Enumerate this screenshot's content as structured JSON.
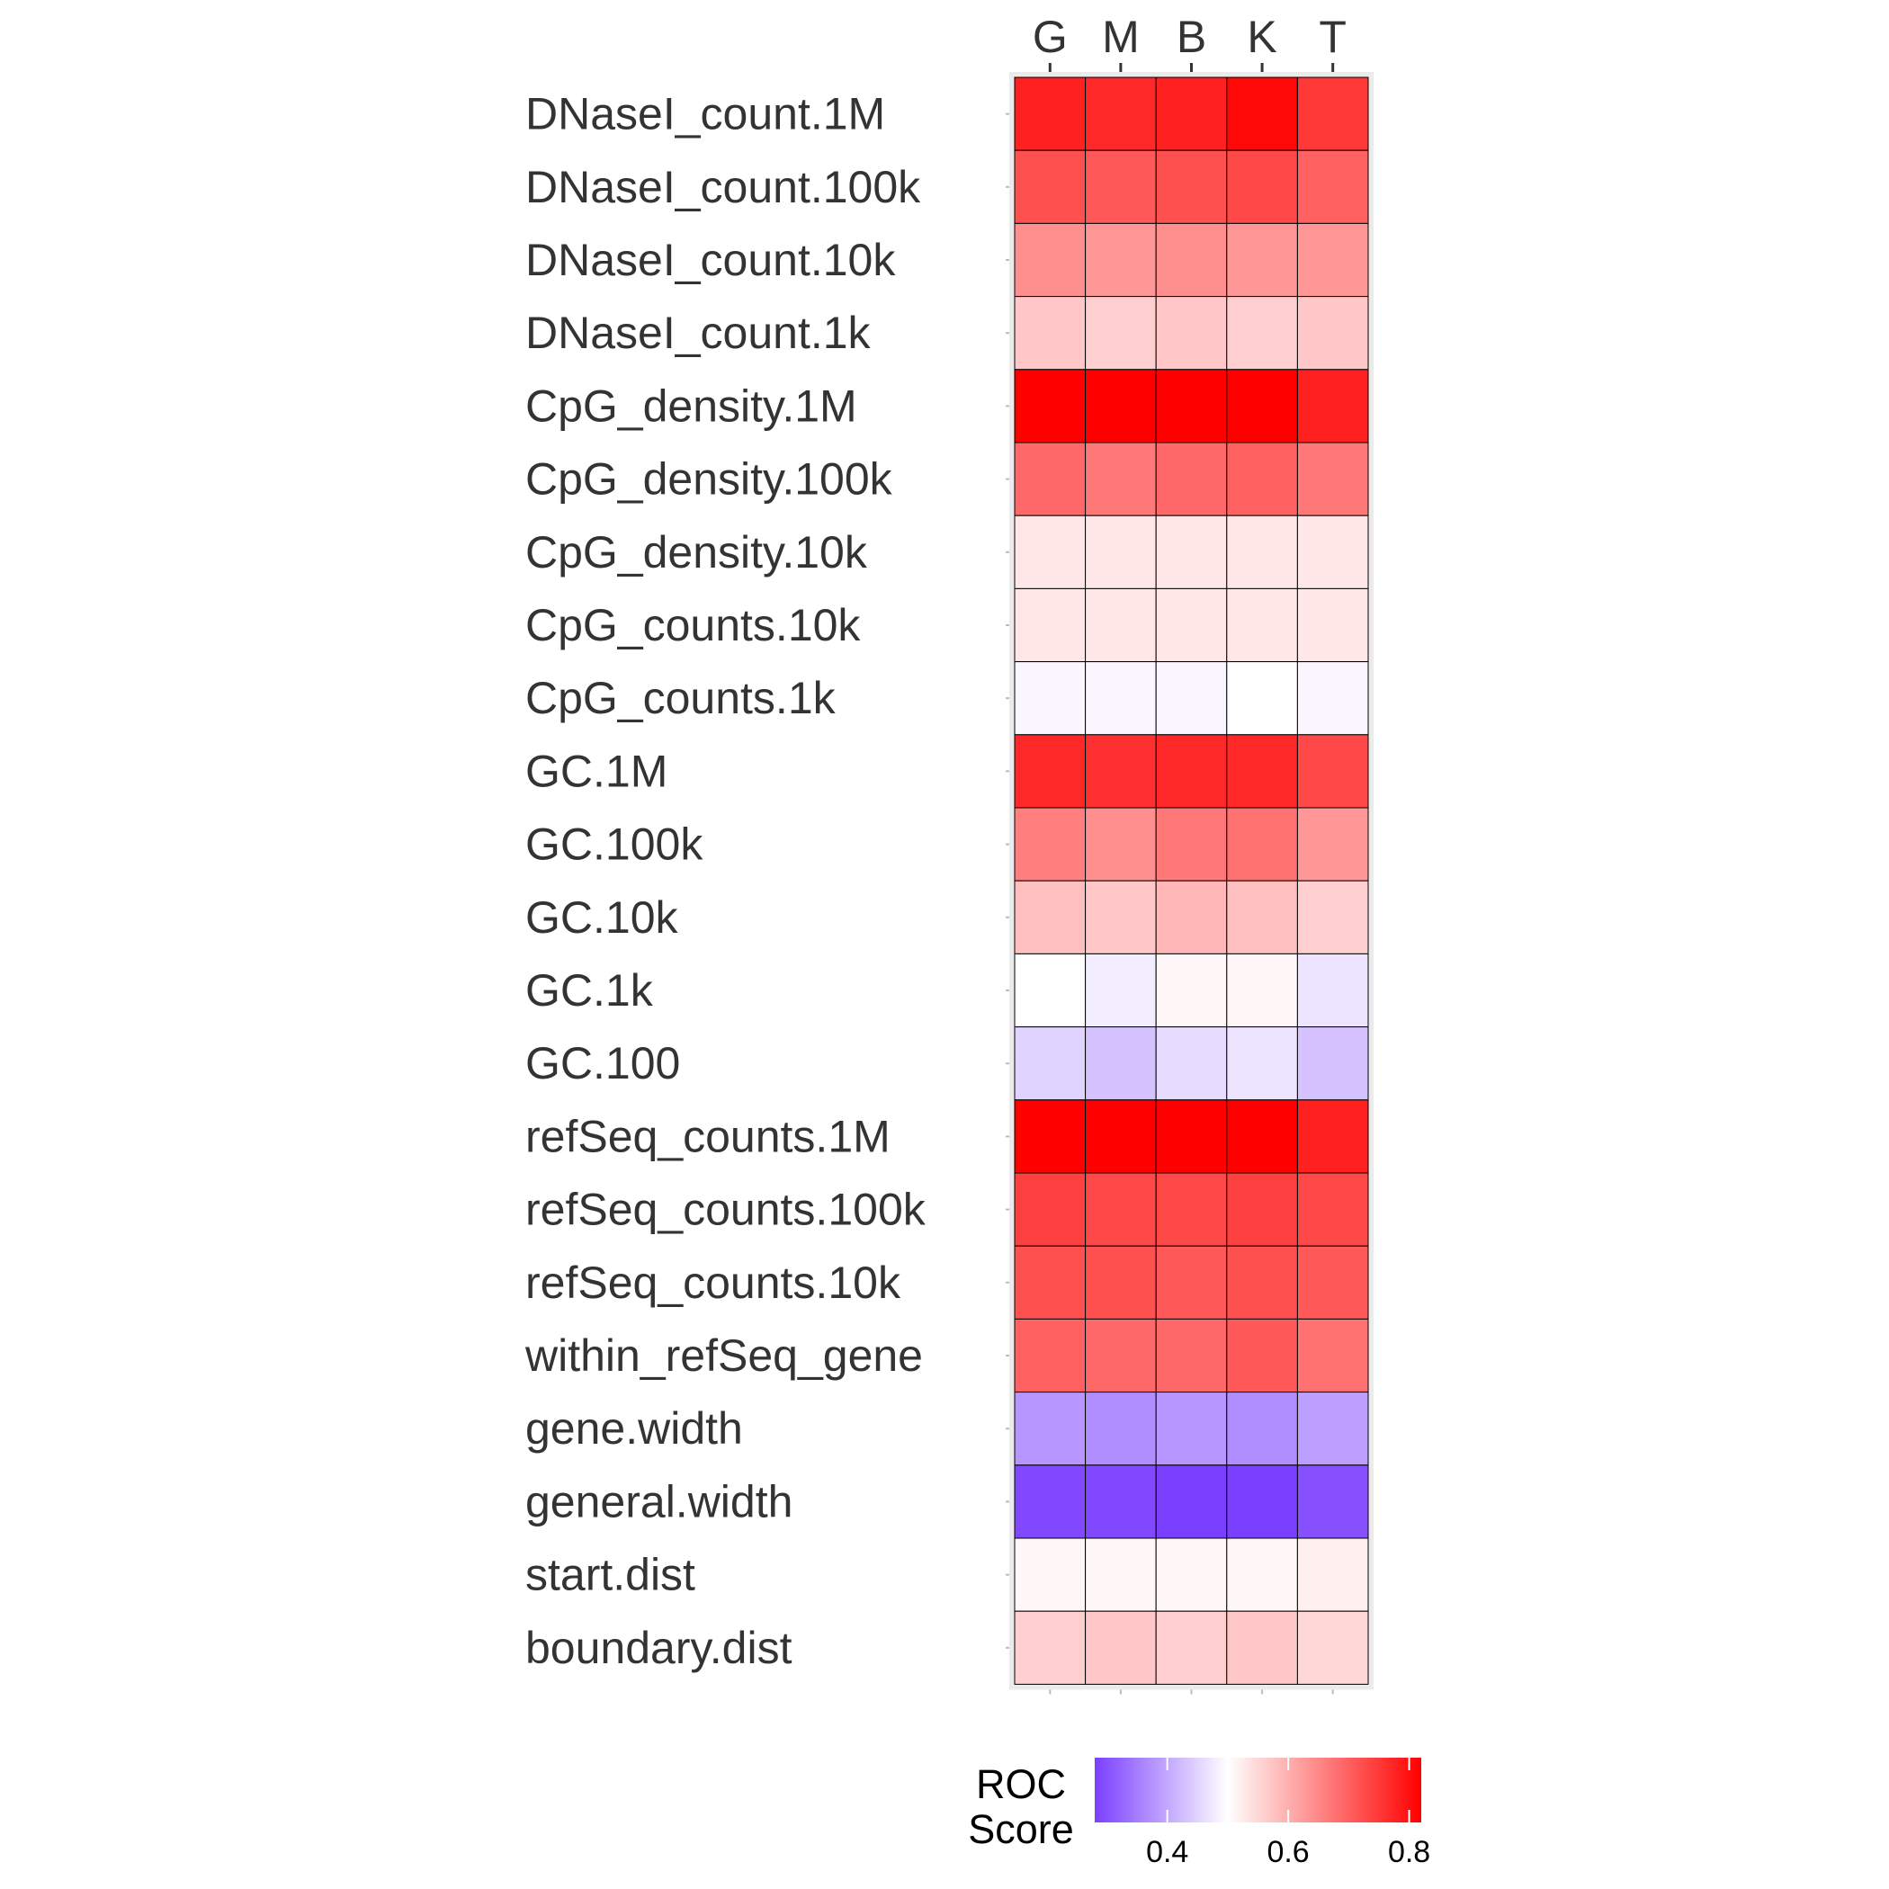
{
  "chart_data": {
    "type": "heatmap",
    "columns": [
      "G",
      "M",
      "B",
      "K",
      "T"
    ],
    "rows": [
      "DNaseI_count.1M",
      "DNaseI_count.100k",
      "DNaseI_count.10k",
      "DNaseI_count.1k",
      "CpG_density.1M",
      "CpG_density.100k",
      "CpG_density.10k",
      "CpG_counts.10k",
      "CpG_counts.1k",
      "GC.1M",
      "GC.100k",
      "GC.10k",
      "GC.1k",
      "GC.100",
      "refSeq_counts.1M",
      "refSeq_counts.100k",
      "refSeq_counts.10k",
      "within_refSeq_gene",
      "gene.width",
      "general.width",
      "start.dist",
      "boundary.dist"
    ],
    "values": [
      [
        0.78,
        0.77,
        0.78,
        0.81,
        0.75
      ],
      [
        0.72,
        0.71,
        0.72,
        0.73,
        0.7
      ],
      [
        0.64,
        0.63,
        0.64,
        0.63,
        0.63
      ],
      [
        0.57,
        0.56,
        0.57,
        0.56,
        0.57
      ],
      [
        0.82,
        0.82,
        0.82,
        0.82,
        0.78
      ],
      [
        0.69,
        0.67,
        0.69,
        0.7,
        0.67
      ],
      [
        0.53,
        0.53,
        0.53,
        0.53,
        0.53
      ],
      [
        0.53,
        0.53,
        0.53,
        0.53,
        0.53
      ],
      [
        0.49,
        0.49,
        0.49,
        0.5,
        0.49
      ],
      [
        0.77,
        0.76,
        0.77,
        0.77,
        0.73
      ],
      [
        0.66,
        0.64,
        0.67,
        0.68,
        0.63
      ],
      [
        0.58,
        0.57,
        0.59,
        0.58,
        0.56
      ],
      [
        0.5,
        0.48,
        0.51,
        0.51,
        0.47
      ],
      [
        0.45,
        0.43,
        0.46,
        0.47,
        0.43
      ],
      [
        0.82,
        0.82,
        0.82,
        0.82,
        0.78
      ],
      [
        0.74,
        0.73,
        0.73,
        0.74,
        0.73
      ],
      [
        0.72,
        0.72,
        0.71,
        0.72,
        0.71
      ],
      [
        0.7,
        0.69,
        0.69,
        0.71,
        0.68
      ],
      [
        0.38,
        0.37,
        0.38,
        0.37,
        0.39
      ],
      [
        0.29,
        0.29,
        0.28,
        0.28,
        0.3
      ],
      [
        0.51,
        0.51,
        0.51,
        0.51,
        0.52
      ],
      [
        0.56,
        0.57,
        0.56,
        0.57,
        0.55
      ]
    ],
    "color_scale": {
      "title_line1": "ROC",
      "title_line2": "Score",
      "min": 0.28,
      "mid": 0.5,
      "max": 0.82,
      "low_color": "#7b3fff",
      "mid_color": "#ffffff",
      "high_color": "#ff0000",
      "ticks": [
        0.4,
        0.6,
        0.8
      ],
      "tick_labels": [
        "0.4",
        "0.6",
        "0.8"
      ]
    },
    "panel_background": "#ebebeb",
    "cell_border": "#000000",
    "column_axis_position": "top",
    "legend_position": "bottom"
  }
}
